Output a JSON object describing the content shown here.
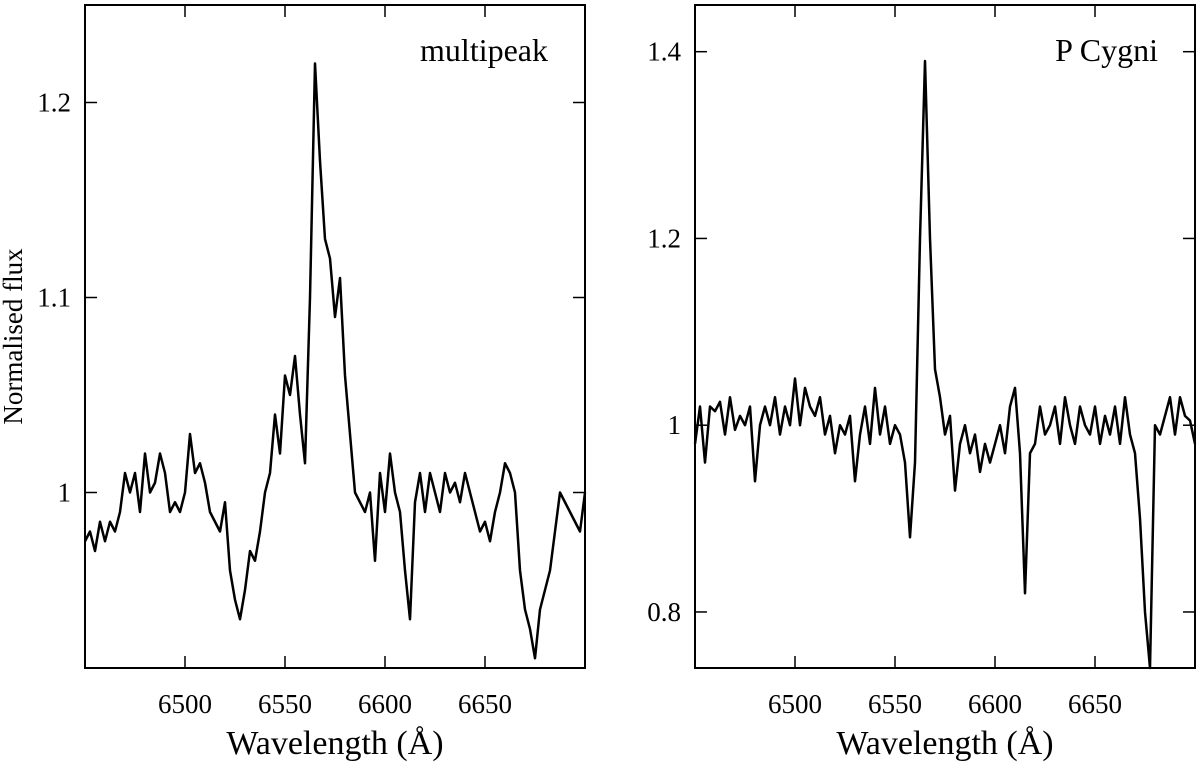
{
  "chart_data": [
    {
      "type": "line",
      "annotation": "multipeak",
      "xlabel": "Wavelength (Å)",
      "ylabel": "Normalised flux",
      "xlim": [
        6450,
        6700
      ],
      "ylim": [
        0.91,
        1.25
      ],
      "xticks": [
        6500,
        6550,
        6600,
        6650
      ],
      "yticks": [
        1,
        1.1,
        1.2
      ],
      "color": "#000000",
      "x": [
        6450,
        6452.5,
        6455,
        6457.5,
        6460,
        6462.5,
        6465,
        6467.5,
        6470,
        6472.5,
        6475,
        6477.5,
        6480,
        6482.5,
        6485,
        6487.5,
        6490,
        6492.5,
        6495,
        6497.5,
        6500,
        6502.5,
        6505,
        6507.5,
        6510,
        6512.5,
        6515,
        6517.5,
        6520,
        6522.5,
        6525,
        6527.5,
        6530,
        6532.5,
        6535,
        6537.5,
        6540,
        6542.5,
        6545,
        6547.5,
        6550,
        6552.5,
        6555,
        6557.5,
        6560,
        6562.5,
        6565,
        6567.5,
        6570,
        6572.5,
        6575,
        6577.5,
        6580,
        6582.5,
        6585,
        6587.5,
        6590,
        6592.5,
        6595,
        6597.5,
        6600,
        6602.5,
        6605,
        6607.5,
        6610,
        6612.5,
        6615,
        6617.5,
        6620,
        6622.5,
        6625,
        6627.5,
        6630,
        6632.5,
        6635,
        6637.5,
        6640,
        6642.5,
        6645,
        6647.5,
        6650,
        6652.5,
        6655,
        6657.5,
        6660,
        6662.5,
        6665,
        6667.5,
        6670,
        6672.5,
        6675,
        6677.5,
        6680,
        6682.5,
        6685,
        6687.5,
        6690,
        6692.5,
        6695,
        6697.5,
        6700
      ],
      "values": [
        0.975,
        0.98,
        0.97,
        0.985,
        0.975,
        0.985,
        0.98,
        0.99,
        1.01,
        1.0,
        1.01,
        0.99,
        1.02,
        1.0,
        1.005,
        1.02,
        1.01,
        0.99,
        0.995,
        0.99,
        1.0,
        1.03,
        1.01,
        1.015,
        1.005,
        0.99,
        0.985,
        0.98,
        0.995,
        0.96,
        0.945,
        0.935,
        0.95,
        0.97,
        0.965,
        0.98,
        1.0,
        1.01,
        1.04,
        1.02,
        1.06,
        1.05,
        1.07,
        1.04,
        1.015,
        1.1,
        1.22,
        1.17,
        1.13,
        1.12,
        1.09,
        1.11,
        1.06,
        1.03,
        1.0,
        0.995,
        0.99,
        1.0,
        0.965,
        1.01,
        0.99,
        1.02,
        1.0,
        0.99,
        0.96,
        0.935,
        0.995,
        1.01,
        0.99,
        1.01,
        1.0,
        0.99,
        1.01,
        1.0,
        1.005,
        0.995,
        1.01,
        1.0,
        0.99,
        0.98,
        0.985,
        0.975,
        0.99,
        1.0,
        1.015,
        1.01,
        1.0,
        0.96,
        0.94,
        0.93,
        0.915,
        0.94,
        0.95,
        0.96,
        0.98,
        1.0,
        0.995,
        0.99,
        0.985,
        0.98,
        1.0
      ]
    },
    {
      "type": "line",
      "annotation": "P Cygni",
      "xlabel": "Wavelength (Å)",
      "xlim": [
        6450,
        6700
      ],
      "ylim": [
        0.74,
        1.45
      ],
      "xticks": [
        6500,
        6550,
        6600,
        6650
      ],
      "yticks": [
        0.8,
        1,
        1.2,
        1.4
      ],
      "color": "#000000",
      "x": [
        6450,
        6452.5,
        6455,
        6457.5,
        6460,
        6462.5,
        6465,
        6467.5,
        6470,
        6472.5,
        6475,
        6477.5,
        6480,
        6482.5,
        6485,
        6487.5,
        6490,
        6492.5,
        6495,
        6497.5,
        6500,
        6502.5,
        6505,
        6507.5,
        6510,
        6512.5,
        6515,
        6517.5,
        6520,
        6522.5,
        6525,
        6527.5,
        6530,
        6532.5,
        6535,
        6537.5,
        6540,
        6542.5,
        6545,
        6547.5,
        6550,
        6552.5,
        6555,
        6557.5,
        6560,
        6562.5,
        6565,
        6567.5,
        6570,
        6572.5,
        6575,
        6577.5,
        6580,
        6582.5,
        6585,
        6587.5,
        6590,
        6592.5,
        6595,
        6597.5,
        6600,
        6602.5,
        6605,
        6607.5,
        6610,
        6612.5,
        6615,
        6617.5,
        6620,
        6622.5,
        6625,
        6627.5,
        6630,
        6632.5,
        6635,
        6637.5,
        6640,
        6642.5,
        6645,
        6647.5,
        6650,
        6652.5,
        6655,
        6657.5,
        6660,
        6662.5,
        6665,
        6667.5,
        6670,
        6672.5,
        6675,
        6677.5,
        6680,
        6682.5,
        6685,
        6687.5,
        6690,
        6692.5,
        6695,
        6697.5,
        6700
      ],
      "values": [
        0.98,
        1.02,
        0.96,
        1.02,
        1.015,
        1.025,
        0.99,
        1.03,
        0.995,
        1.01,
        1.0,
        1.02,
        0.94,
        1.0,
        1.02,
        1.0,
        1.03,
        0.99,
        1.02,
        1.0,
        1.05,
        1.0,
        1.04,
        1.02,
        1.01,
        1.03,
        0.99,
        1.01,
        0.97,
        1.0,
        0.99,
        1.01,
        0.94,
        0.99,
        1.02,
        0.98,
        1.04,
        0.99,
        1.02,
        0.98,
        1.0,
        0.99,
        0.96,
        0.88,
        0.96,
        1.2,
        1.39,
        1.2,
        1.06,
        1.03,
        0.99,
        1.01,
        0.93,
        0.98,
        1.0,
        0.97,
        0.99,
        0.95,
        0.98,
        0.96,
        0.98,
        1.0,
        0.97,
        1.02,
        1.04,
        0.97,
        0.82,
        0.97,
        0.98,
        1.02,
        0.99,
        1.0,
        1.02,
        0.98,
        1.03,
        1.0,
        0.98,
        1.02,
        1.0,
        0.99,
        1.02,
        0.98,
        1.01,
        0.99,
        1.02,
        0.98,
        1.03,
        0.99,
        0.97,
        0.9,
        0.8,
        0.74,
        1.0,
        0.99,
        1.01,
        1.03,
        0.99,
        1.03,
        1.01,
        1.005,
        0.98
      ]
    }
  ]
}
